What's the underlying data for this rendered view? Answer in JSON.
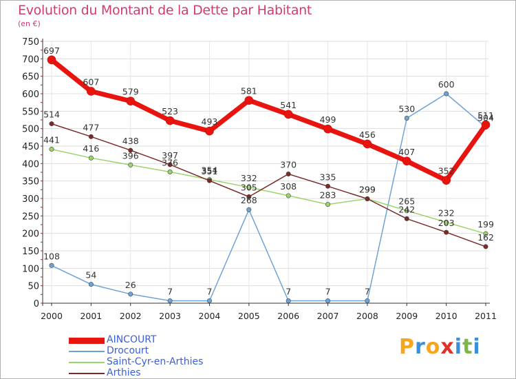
{
  "header": {
    "title": "Evolution du Montant de la Dette par Habitant",
    "unit": "(en €)"
  },
  "logo": {
    "letters": [
      "P",
      "r",
      "o",
      "x",
      "i",
      "t",
      "i"
    ],
    "colors": [
      "#f7a51c",
      "#3a8fd8",
      "#f7a51c",
      "#e0312a",
      "#3a8fd8",
      "#7ab648",
      "#3a8fd8"
    ]
  },
  "chart_data": {
    "type": "line",
    "title": "Evolution du Montant de la Dette par Habitant",
    "xlabel": "",
    "ylabel": "(en €)",
    "ylim": [
      0,
      750
    ],
    "yticks": [
      0,
      50,
      100,
      150,
      200,
      250,
      300,
      350,
      400,
      450,
      500,
      550,
      600,
      650,
      700,
      750
    ],
    "x": [
      "2000",
      "2001",
      "2002",
      "2003",
      "2004",
      "2005",
      "2006",
      "2007",
      "2008",
      "2009",
      "2010",
      "2011"
    ],
    "grid": true,
    "legend_position": "bottom-left",
    "series": [
      {
        "name": "AINCOURT",
        "color": "#e8140f",
        "width": 7,
        "values": [
          697,
          607,
          579,
          523,
          493,
          581,
          541,
          499,
          456,
          407,
          352,
          511
        ]
      },
      {
        "name": "Drocourt",
        "color": "#6ea3d6",
        "width": 1.5,
        "values": [
          108,
          54,
          26,
          7,
          7,
          268,
          7,
          7,
          7,
          530,
          600,
          504
        ]
      },
      {
        "name": "Saint-Cyr-en-Arthies",
        "color": "#9bd46a",
        "width": 1.5,
        "values": [
          441,
          416,
          396,
          376,
          354,
          332,
          308,
          283,
          299,
          265,
          232,
          199
        ]
      },
      {
        "name": "Arthies",
        "color": "#7b2a2a",
        "width": 1.5,
        "values": [
          514,
          477,
          438,
          397,
          351,
          305,
          370,
          335,
          299,
          242,
          203,
          162
        ]
      }
    ]
  }
}
